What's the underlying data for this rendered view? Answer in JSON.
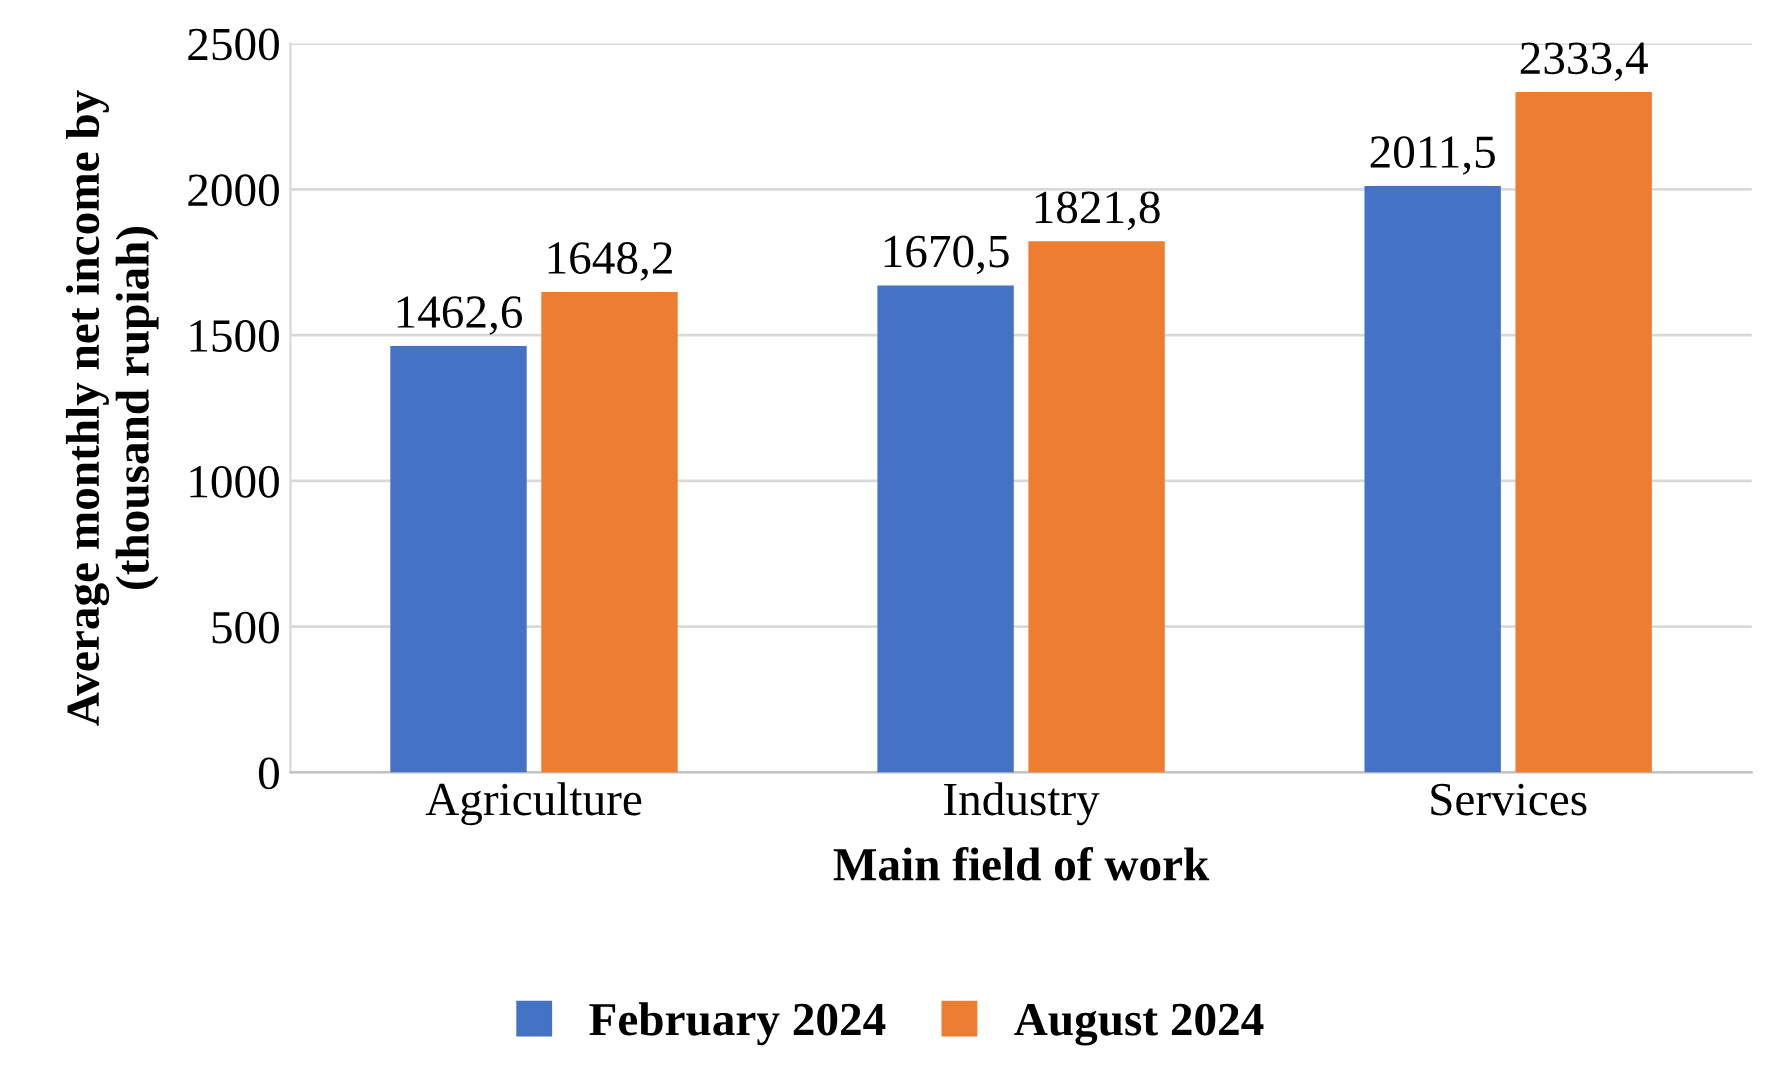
{
  "chart_data": {
    "type": "bar",
    "xlabel": "Main field of work",
    "ylabel": "Average monthly net income by\n(thousand rupiah)",
    "categories": [
      "Agriculture",
      "Industry",
      "Services"
    ],
    "series": [
      {
        "name": "February 2024",
        "color": "#4472c4",
        "values": [
          1462.6,
          1670.5,
          2011.5
        ],
        "value_labels": [
          "1462,6",
          "1670,5",
          "2011,5"
        ]
      },
      {
        "name": "August 2024",
        "color": "#ed7d31",
        "values": [
          1648.2,
          1821.8,
          2333.4
        ],
        "value_labels": [
          "1648,2",
          "1821,8",
          "2333,4"
        ]
      }
    ],
    "ylim": [
      0,
      2500
    ],
    "yticks": [
      0,
      500,
      1000,
      1500,
      2000,
      2500
    ],
    "grid": "y",
    "legend": "bottom"
  }
}
